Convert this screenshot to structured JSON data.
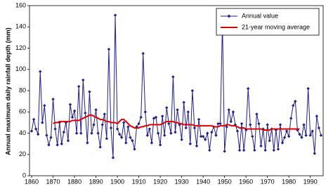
{
  "chart_data": {
    "type": "line",
    "y_label": "Annual maximum daily rainfall depth (mm)",
    "x": [
      1860,
      1861,
      1862,
      1863,
      1864,
      1865,
      1866,
      1867,
      1868,
      1869,
      1870,
      1871,
      1872,
      1873,
      1874,
      1875,
      1876,
      1877,
      1878,
      1879,
      1880,
      1881,
      1882,
      1883,
      1884,
      1885,
      1886,
      1887,
      1888,
      1889,
      1890,
      1891,
      1892,
      1893,
      1894,
      1895,
      1896,
      1897,
      1898,
      1899,
      1900,
      1901,
      1902,
      1903,
      1904,
      1905,
      1906,
      1907,
      1908,
      1909,
      1910,
      1911,
      1912,
      1913,
      1914,
      1915,
      1916,
      1917,
      1918,
      1919,
      1920,
      1921,
      1922,
      1923,
      1924,
      1925,
      1926,
      1927,
      1928,
      1929,
      1930,
      1931,
      1932,
      1933,
      1934,
      1935,
      1936,
      1937,
      1938,
      1939,
      1940,
      1941,
      1942,
      1943,
      1944,
      1945,
      1946,
      1947,
      1948,
      1949,
      1950,
      1951,
      1952,
      1953,
      1954,
      1955,
      1956,
      1957,
      1958,
      1959,
      1960,
      1961,
      1962,
      1963,
      1964,
      1965,
      1966,
      1967,
      1968,
      1969,
      1970,
      1971,
      1972,
      1973,
      1974,
      1975,
      1976,
      1977,
      1978,
      1979,
      1980,
      1981,
      1982,
      1983,
      1984,
      1985,
      1986,
      1987,
      1988,
      1989,
      1990,
      1991,
      1992,
      1993,
      1994,
      1995
    ],
    "series": [
      {
        "name": "Annual value",
        "color": "#1f1f8f",
        "marker": "diamond",
        "values": [
          42,
          53,
          44,
          39,
          98,
          50,
          66,
          38,
          29,
          36,
          72,
          44,
          29,
          50,
          30,
          41,
          50,
          33,
          67,
          55,
          61,
          40,
          84,
          40,
          90,
          59,
          31,
          79,
          40,
          48,
          62,
          40,
          27,
          48,
          58,
          35,
          119,
          45,
          17,
          151,
          44,
          39,
          36,
          50,
          31,
          46,
          36,
          33,
          25,
          46,
          49,
          55,
          115,
          60,
          38,
          44,
          31,
          54,
          55,
          40,
          29,
          56,
          38,
          64,
          49,
          40,
          93,
          41,
          62,
          48,
          34,
          69,
          45,
          60,
          30,
          80,
          45,
          28,
          53,
          37,
          37,
          34,
          40,
          24,
          41,
          46,
          38,
          49,
          49,
          143,
          23,
          46,
          62,
          51,
          60,
          48,
          42,
          24,
          49,
          24,
          43,
          82,
          48,
          37,
          24,
          58,
          49,
          28,
          44,
          24,
          48,
          33,
          44,
          24,
          43,
          25,
          48,
          31,
          36,
          42,
          37,
          54,
          66,
          70,
          43,
          39,
          36,
          48,
          38,
          82,
          38,
          42,
          21,
          56,
          45,
          38
        ]
      },
      {
        "name": "21-year moving average",
        "color": "#e00000",
        "marker": null,
        "values": [
          null,
          null,
          null,
          null,
          null,
          null,
          null,
          null,
          null,
          null,
          49,
          50,
          50,
          51,
          51,
          51,
          51,
          51,
          51,
          52,
          52,
          52,
          52,
          53,
          54,
          55,
          56,
          57,
          57,
          56,
          55,
          54,
          53,
          53,
          52,
          51,
          51,
          50,
          50,
          50,
          49,
          51,
          53,
          53,
          51,
          49,
          47,
          46,
          45,
          45,
          45,
          46,
          46,
          47,
          47,
          48,
          48,
          48,
          48,
          48,
          48,
          49,
          50,
          51,
          51,
          51,
          51,
          50,
          50,
          49,
          49,
          48,
          48,
          48,
          48,
          48,
          47,
          47,
          47,
          47,
          47,
          47,
          47,
          47,
          47,
          46,
          46,
          46,
          47,
          47,
          47,
          48,
          48,
          47,
          47,
          47,
          46,
          45,
          45,
          45,
          44,
          44,
          44,
          44,
          44,
          44,
          44,
          44,
          43,
          43,
          43,
          43,
          44,
          44,
          44,
          44,
          44,
          44,
          44,
          44,
          44,
          44,
          44,
          44,
          44,
          44,
          null,
          null,
          null,
          null,
          null,
          null,
          null,
          null,
          null,
          null
        ]
      }
    ],
    "xlim": [
      1859,
      1996
    ],
    "xticks": [
      1860,
      1870,
      1880,
      1890,
      1900,
      1910,
      1920,
      1930,
      1940,
      1950,
      1960,
      1970,
      1980,
      1990
    ],
    "ylim": [
      0,
      160
    ],
    "yticks": [
      0,
      20,
      40,
      60,
      80,
      100,
      120,
      140,
      160
    ],
    "legend": "top-right"
  }
}
